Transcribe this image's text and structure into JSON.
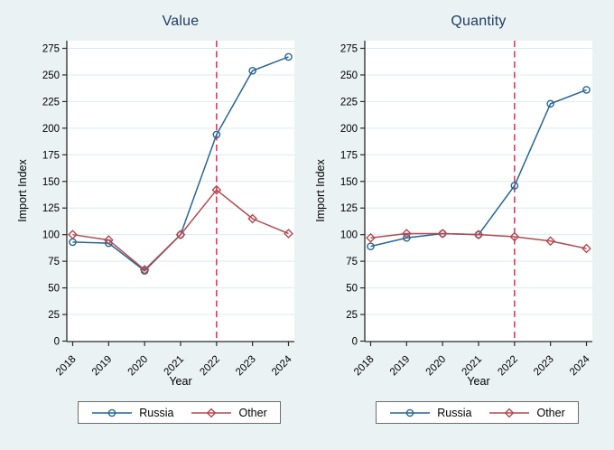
{
  "figure": {
    "colors": {
      "background": "#eaf2f3",
      "plot_bg": "#ffffff",
      "grid": "#d9ebf2",
      "axis": "#2b2b2b",
      "tick_text": "#000000",
      "title": "#1e3b5f"
    }
  },
  "chart_data": [
    {
      "type": "line",
      "title": "Value",
      "xlabel": "Year",
      "ylabel": "Import Index",
      "x": [
        2018,
        2019,
        2020,
        2021,
        2022,
        2023,
        2024
      ],
      "ylim": [
        0,
        275
      ],
      "yticks": [
        0,
        25,
        50,
        75,
        100,
        125,
        150,
        175,
        200,
        225,
        250,
        275
      ],
      "grid": true,
      "legend_position": "bottom",
      "series": [
        {
          "name": "Russia",
          "marker": "circle",
          "color": "#276690",
          "values": [
            93,
            92,
            66,
            100,
            194,
            254,
            267
          ]
        },
        {
          "name": "Other",
          "marker": "diamond",
          "color": "#b34a52",
          "values": [
            100,
            95,
            67,
            100,
            142,
            115,
            101
          ]
        }
      ],
      "vline": {
        "x": 2022,
        "style": "dashed",
        "color": "#df3a5c"
      }
    },
    {
      "type": "line",
      "title": "Quantity",
      "xlabel": "Year",
      "ylabel": "Import Index",
      "x": [
        2018,
        2019,
        2020,
        2021,
        2022,
        2023,
        2024
      ],
      "ylim": [
        0,
        275
      ],
      "yticks": [
        0,
        25,
        50,
        75,
        100,
        125,
        150,
        175,
        200,
        225,
        250,
        275
      ],
      "grid": true,
      "legend_position": "bottom",
      "series": [
        {
          "name": "Russia",
          "marker": "circle",
          "color": "#276690",
          "values": [
            89,
            97,
            101,
            100,
            146,
            223,
            236
          ]
        },
        {
          "name": "Other",
          "marker": "diamond",
          "color": "#b34a52",
          "values": [
            97,
            101,
            101,
            100,
            98,
            94,
            87
          ]
        }
      ],
      "vline": {
        "x": 2022,
        "style": "dashed",
        "color": "#df3a5c"
      }
    }
  ]
}
